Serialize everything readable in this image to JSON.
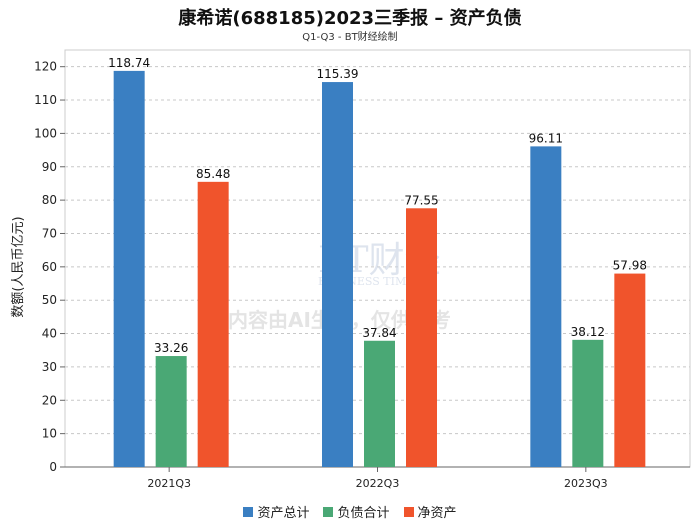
{
  "chart_data": {
    "type": "bar",
    "title": "康希诺(688185)2023三季报 – 资产负债",
    "subtitle": "Q1-Q3 - BT财经绘制",
    "ylabel": "数额(人民币亿元)",
    "xlabel": "",
    "ylim": [
      0,
      125
    ],
    "yticks": [
      0,
      10,
      20,
      30,
      40,
      50,
      60,
      70,
      80,
      90,
      100,
      110,
      120
    ],
    "grid": true,
    "legend_position": "bottom",
    "categories": [
      "2021Q3",
      "2022Q3",
      "2023Q3"
    ],
    "series": [
      {
        "name": "资产总计",
        "color": "#3a7fc2",
        "values": [
          118.74,
          115.39,
          96.11
        ]
      },
      {
        "name": "负债合计",
        "color": "#4aa875",
        "values": [
          33.26,
          37.84,
          38.12
        ]
      },
      {
        "name": "净资产",
        "color": "#f0542c",
        "values": [
          85.48,
          77.55,
          57.98
        ]
      }
    ]
  },
  "watermark": {
    "brand": "BT财经",
    "brand_en": "BUSINESS TIMES",
    "notice": "内容由AI生成，仅供参考"
  }
}
